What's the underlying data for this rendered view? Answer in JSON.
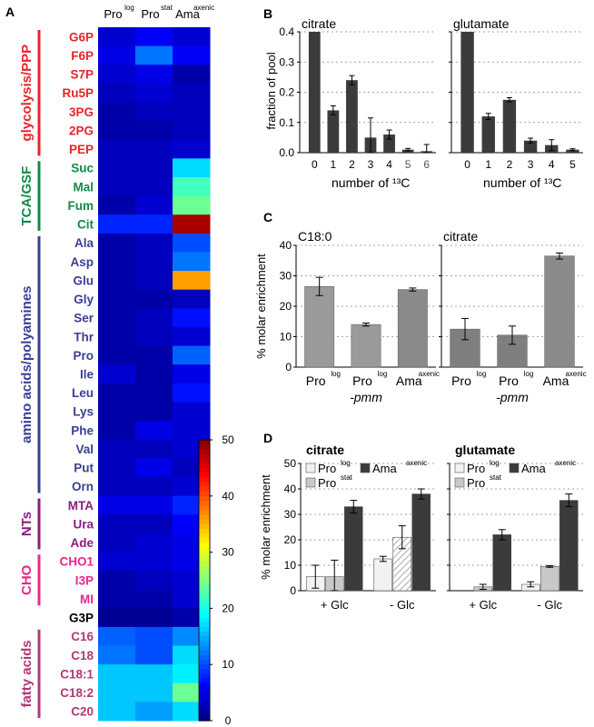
{
  "chart_data": [
    {
      "panel": "A",
      "type": "heatmap",
      "columns": [
        {
          "base": "Pro",
          "sup": "log"
        },
        {
          "base": "Pro",
          "sup": "stat"
        },
        {
          "base": "Ama",
          "sup": "axenic"
        }
      ],
      "groups": [
        {
          "label": "glycolysis/PPP",
          "color": "#e8242a",
          "rows": 7
        },
        {
          "label": "TCA/GSF",
          "color": "#118a48",
          "rows": 4
        },
        {
          "label": "amino acids/polyamines",
          "color": "#3a3f94",
          "rows": 14
        },
        {
          "label": "NTs",
          "color": "#8d1b80",
          "rows": 3
        },
        {
          "label": "CHO",
          "color": "#e8288c",
          "rows": 3
        },
        {
          "label": "",
          "color": "#000000",
          "rows": 1
        },
        {
          "label": "fatty acids",
          "color": "#b03a73",
          "rows": 5
        }
      ],
      "rows": [
        "G6P",
        "F6P",
        "S7P",
        "Ru5P",
        "3PG",
        "2PG",
        "PEP",
        "Suc",
        "Mal",
        "Fum",
        "Cit",
        "Ala",
        "Asp",
        "Glu",
        "Gly",
        "Ser",
        "Thr",
        "Pro",
        "Ile",
        "Leu",
        "Lys",
        "Phe",
        "Val",
        "Put",
        "Orn",
        "MTA",
        "Ura",
        "Ade",
        "CHO1",
        "I3P",
        "MI",
        "G3P",
        "C16",
        "C18",
        "C18:1",
        "C18:2",
        "C20"
      ],
      "row_colors": [
        "#e8242a",
        "#e8242a",
        "#e8242a",
        "#e8242a",
        "#e8242a",
        "#e8242a",
        "#e8242a",
        "#118a48",
        "#118a48",
        "#118a48",
        "#118a48",
        "#3a3f94",
        "#3a3f94",
        "#3a3f94",
        "#3a3f94",
        "#3a3f94",
        "#3a3f94",
        "#3a3f94",
        "#3a3f94",
        "#3a3f94",
        "#3a3f94",
        "#3a3f94",
        "#3a3f94",
        "#3a3f94",
        "#3a3f94",
        "#8d1b80",
        "#8d1b80",
        "#8d1b80",
        "#e8288c",
        "#e8288c",
        "#e8288c",
        "#000000",
        "#b03a73",
        "#b03a73",
        "#b03a73",
        "#b03a73",
        "#b03a73"
      ],
      "values": [
        [
          4,
          6,
          4
        ],
        [
          5,
          12,
          6
        ],
        [
          4,
          5,
          2
        ],
        [
          3,
          4,
          3
        ],
        [
          2,
          3,
          3
        ],
        [
          2,
          2,
          3
        ],
        [
          3,
          3,
          4
        ],
        [
          3,
          3,
          17
        ],
        [
          3,
          3,
          22
        ],
        [
          2,
          4,
          24
        ],
        [
          8,
          8,
          48
        ],
        [
          2,
          3,
          10
        ],
        [
          2,
          3,
          12
        ],
        [
          2,
          3,
          36
        ],
        [
          2,
          2,
          3
        ],
        [
          2,
          3,
          7
        ],
        [
          2,
          3,
          4
        ],
        [
          2,
          2,
          11
        ],
        [
          4,
          2,
          5
        ],
        [
          2,
          2,
          7
        ],
        [
          2,
          2,
          4
        ],
        [
          2,
          5,
          4
        ],
        [
          3,
          3,
          4
        ],
        [
          3,
          5,
          3
        ],
        [
          3,
          3,
          4
        ],
        [
          5,
          5,
          8
        ],
        [
          3,
          3,
          6
        ],
        [
          3,
          4,
          5
        ],
        [
          4,
          4,
          5
        ],
        [
          2,
          3,
          4
        ],
        [
          2,
          2,
          4
        ],
        [
          1,
          1,
          2
        ],
        [
          11,
          10,
          13
        ],
        [
          12,
          10,
          17
        ],
        [
          16,
          16,
          18
        ],
        [
          16,
          16,
          24
        ],
        [
          16,
          14,
          17
        ]
      ],
      "colorbar": {
        "min": 0,
        "max": 50,
        "ticks": [
          0,
          10,
          20,
          30,
          40,
          50
        ]
      }
    },
    {
      "panel": "B",
      "type": "bar",
      "title": "citrate",
      "xlabel": "number of ¹³C",
      "ylabel": "fraction of pool",
      "categories": [
        "0",
        "1",
        "2",
        "3",
        "4",
        "5",
        "6"
      ],
      "values": [
        0.4,
        0.14,
        0.24,
        0.05,
        0.06,
        0.01,
        0.005
      ],
      "errors": [
        0,
        0.015,
        0.015,
        0.065,
        0.015,
        0.004,
        0.022
      ],
      "ylim": [
        0,
        0.4
      ],
      "yticks": [
        "0.0",
        "0.1",
        "0.2",
        "0.3",
        "0.4"
      ]
    },
    {
      "panel": "B",
      "type": "bar",
      "title": "glutamate",
      "xlabel": "number of ¹³C",
      "categories": [
        "0",
        "1",
        "2",
        "3",
        "4",
        "5"
      ],
      "values": [
        0.4,
        0.12,
        0.175,
        0.04,
        0.025,
        0.01
      ],
      "errors": [
        0,
        0.01,
        0.007,
        0.008,
        0.018,
        0.003
      ],
      "ylim": [
        0,
        0.4
      ]
    },
    {
      "panel": "C",
      "type": "bar",
      "title": "C18:0",
      "ylabel": "% molar enrichment",
      "categories": [
        {
          "base": "Pro",
          "sup": "log",
          "sub": ""
        },
        {
          "base": "Pro",
          "sup": "log",
          "sub": "-pmm"
        },
        {
          "base": "Ama",
          "sup": "axenic",
          "sub": ""
        }
      ],
      "values": [
        26.5,
        14,
        25.5
      ],
      "errors": [
        3,
        0.5,
        0.5
      ],
      "ylim": [
        0,
        40
      ],
      "yticks": [
        "0",
        "10",
        "20",
        "30",
        "40"
      ]
    },
    {
      "panel": "C",
      "type": "bar",
      "title": "citrate",
      "categories": [
        {
          "base": "Pro",
          "sup": "log",
          "sub": ""
        },
        {
          "base": "Pro",
          "sup": "log",
          "sub": "-pmm"
        },
        {
          "base": "Ama",
          "sup": "axenic",
          "sub": ""
        }
      ],
      "values": [
        12.5,
        10.5,
        36.5
      ],
      "errors": [
        3.5,
        3,
        1
      ],
      "ylim": [
        0,
        40
      ]
    },
    {
      "panel": "D",
      "type": "bar",
      "title": "citrate",
      "ylabel": "% molar enrichment",
      "categories": [
        "+ Glc",
        "- Glc"
      ],
      "series": [
        {
          "name": "Pro",
          "sup": "log",
          "values": [
            5.5,
            12.5
          ],
          "errors": [
            4.5,
            1
          ]
        },
        {
          "name": "Pro",
          "sup": "stat",
          "values": [
            5.5,
            21
          ],
          "errors": [
            6.5,
            4.5
          ]
        },
        {
          "name": "Ama",
          "sup": "axenic",
          "values": [
            33,
            38
          ],
          "errors": [
            2.5,
            2
          ]
        }
      ],
      "ylim": [
        0,
        50
      ],
      "yticks": [
        "0",
        "10",
        "20",
        "30",
        "40",
        "50"
      ]
    },
    {
      "panel": "D",
      "type": "bar",
      "title": "glutamate",
      "categories": [
        "+ Glc",
        "- Glc"
      ],
      "series": [
        {
          "name": "Pro",
          "sup": "log",
          "values": [
            0,
            2.5
          ],
          "errors": [
            0,
            1
          ]
        },
        {
          "name": "Pro",
          "sup": "stat",
          "values": [
            1.5,
            9.5
          ],
          "errors": [
            1,
            0.3
          ]
        },
        {
          "name": "Ama",
          "sup": "axenic",
          "values": [
            22,
            35.5
          ],
          "errors": [
            2,
            2.5
          ]
        }
      ],
      "ylim": [
        0,
        50
      ]
    }
  ],
  "panel_letters": [
    "A",
    "B",
    "C",
    "D"
  ]
}
